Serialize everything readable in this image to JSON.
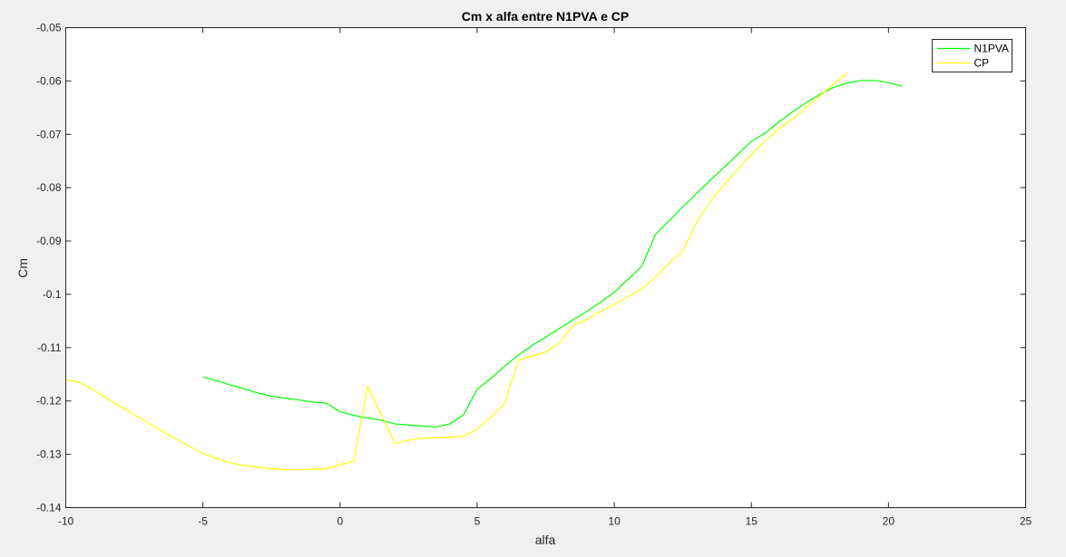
{
  "figure": {
    "background": "#f0f0f0"
  },
  "chart_data": {
    "type": "line",
    "title": "Cm x alfa entre N1PVA e CP",
    "xlabel": "alfa",
    "ylabel": "Cm",
    "xlim": [
      -10,
      25
    ],
    "ylim": [
      -0.14,
      -0.05
    ],
    "xticks": [
      -10,
      -5,
      0,
      5,
      10,
      15,
      20,
      25
    ],
    "xtick_labels": [
      "-10",
      "-5",
      "0",
      "5",
      "10",
      "15",
      "20",
      "25"
    ],
    "yticks": [
      -0.14,
      -0.13,
      -0.12,
      -0.11,
      -0.1,
      -0.09,
      -0.08,
      -0.07,
      -0.06,
      -0.05
    ],
    "ytick_labels": [
      "-0.14",
      "-0.13",
      "-0.12",
      "-0.11",
      "-0.1",
      "-0.09",
      "-0.08",
      "-0.07",
      "-0.06",
      "-0.05"
    ],
    "grid": false,
    "legend_position": "top-right",
    "series": [
      {
        "name": "N1PVA",
        "color": "#00ff00",
        "x": [
          -5,
          -4.5,
          -4,
          -3.5,
          -3,
          -2.5,
          -2,
          -1.5,
          -1,
          -0.5,
          0,
          0.5,
          1,
          1.5,
          2,
          2.5,
          3,
          3.5,
          4,
          4.5,
          5,
          5.5,
          6,
          6.5,
          7,
          7.5,
          8,
          8.5,
          9,
          9.5,
          10,
          10.5,
          11,
          11.5,
          12,
          12.5,
          13,
          13.5,
          14,
          14.5,
          15,
          15.5,
          16,
          16.5,
          17,
          17.5,
          18,
          18.5,
          19,
          19.5,
          20,
          20.5
        ],
        "y": [
          -0.1155,
          -0.1162,
          -0.117,
          -0.1177,
          -0.1185,
          -0.1191,
          -0.1195,
          -0.1198,
          -0.1202,
          -0.1204,
          -0.122,
          -0.1227,
          -0.1232,
          -0.1236,
          -0.1243,
          -0.1245,
          -0.1247,
          -0.1249,
          -0.1243,
          -0.1226,
          -0.1178,
          -0.1158,
          -0.1135,
          -0.1114,
          -0.1096,
          -0.108,
          -0.1064,
          -0.1048,
          -0.1032,
          -0.1015,
          -0.0996,
          -0.0972,
          -0.0948,
          -0.0888,
          -0.0862,
          -0.0836,
          -0.0811,
          -0.0786,
          -0.0762,
          -0.0738,
          -0.0713,
          -0.0698,
          -0.0677,
          -0.0658,
          -0.0641,
          -0.0625,
          -0.0612,
          -0.0604,
          -0.0599,
          -0.0599,
          -0.0603,
          -0.061
        ]
      },
      {
        "name": "CP",
        "color": "#ffff00",
        "x": [
          -10,
          -9.5,
          -9,
          -8.5,
          -8,
          -7.5,
          -7,
          -6.5,
          -6,
          -5.5,
          -5,
          -4.5,
          -4,
          -3.5,
          -3,
          -2.5,
          -2,
          -1.5,
          -1,
          -0.5,
          0,
          0.5,
          1,
          1.5,
          2,
          2.5,
          3,
          3.5,
          4,
          4.5,
          5,
          5.5,
          6,
          6.5,
          7,
          7.5,
          8,
          8.5,
          9,
          9.5,
          10,
          10.5,
          11,
          11.5,
          12,
          12.5,
          13,
          13.5,
          14,
          14.5,
          15,
          15.5,
          16,
          16.5,
          17,
          17.5,
          18,
          18.5
        ],
        "y": [
          -0.116,
          -0.1165,
          -0.1179,
          -0.1195,
          -0.1211,
          -0.1226,
          -0.1241,
          -0.1256,
          -0.1271,
          -0.1285,
          -0.1298,
          -0.1308,
          -0.1316,
          -0.1321,
          -0.1324,
          -0.1327,
          -0.1329,
          -0.1329,
          -0.1328,
          -0.1327,
          -0.132,
          -0.1313,
          -0.1172,
          -0.1225,
          -0.128,
          -0.1273,
          -0.127,
          -0.1269,
          -0.1268,
          -0.1266,
          -0.1253,
          -0.123,
          -0.1205,
          -0.1124,
          -0.1116,
          -0.1108,
          -0.1091,
          -0.1058,
          -0.1047,
          -0.1032,
          -0.1019,
          -0.1005,
          -0.0989,
          -0.0968,
          -0.0942,
          -0.0918,
          -0.0865,
          -0.0826,
          -0.0795,
          -0.0766,
          -0.0738,
          -0.0712,
          -0.069,
          -0.0671,
          -0.065,
          -0.0628,
          -0.0606,
          -0.0585
        ]
      }
    ]
  }
}
